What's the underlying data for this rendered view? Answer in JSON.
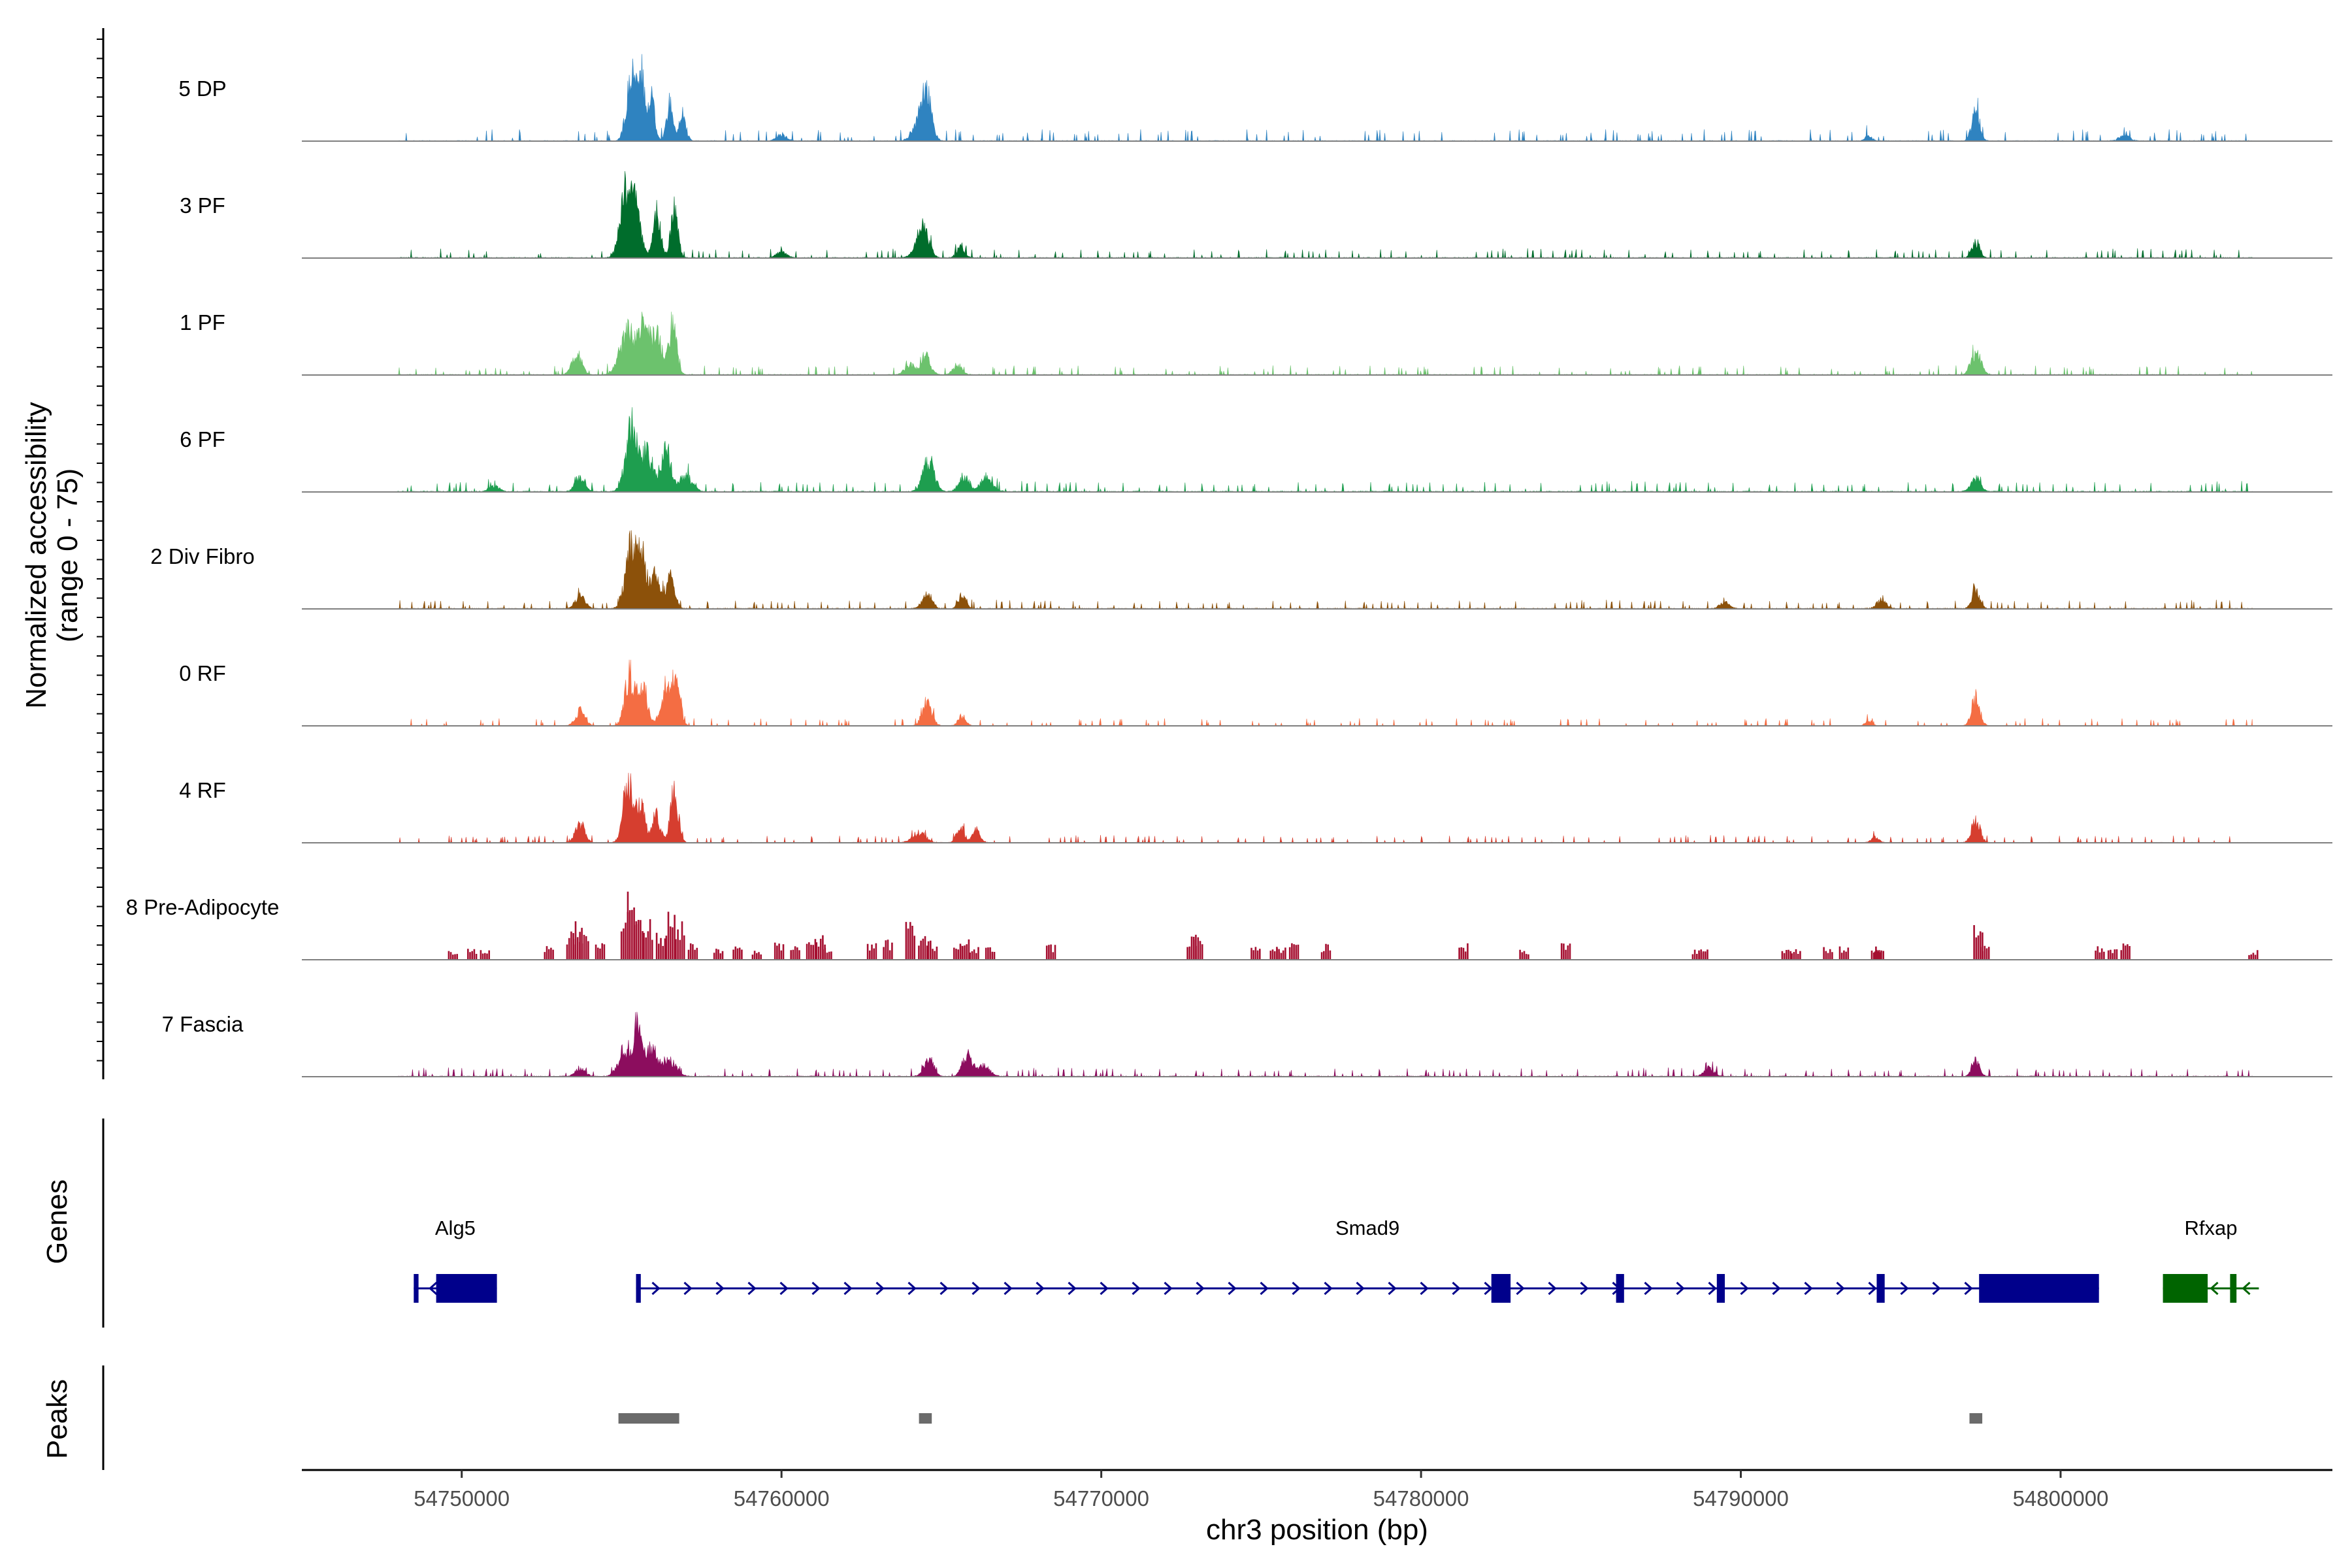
{
  "chart_data": {
    "type": "area",
    "description_note": "Genome browser coverage plot: normalized chromatin accessibility per cell cluster, gene annotation and peak tracks",
    "y_axis_title": "Normalized accessibility",
    "y_axis_range_label": "(range 0 - 75)",
    "ylim": [
      0,
      75
    ],
    "xlabel": "chr3 position (bp)",
    "xlim": [
      54745000,
      54808500
    ],
    "x_ticks": [
      54750000,
      54760000,
      54770000,
      54780000,
      54790000,
      54800000
    ],
    "x_tick_labels": [
      "54750000",
      "54760000",
      "54770000",
      "54780000",
      "54790000",
      "54800000"
    ],
    "data_range": [
      54748000,
      54806000
    ],
    "tracks": [
      {
        "name": "5 DP",
        "color": "#2f83c0",
        "noise": 2.0,
        "bg": 0.5,
        "peaks": [
          [
            54755300,
            55,
            150
          ],
          [
            54755600,
            70,
            120
          ],
          [
            54755950,
            40,
            100
          ],
          [
            54756500,
            35,
            100
          ],
          [
            54756900,
            20,
            120
          ],
          [
            54764300,
            18,
            200
          ],
          [
            54764550,
            40,
            150
          ],
          [
            54797350,
            30,
            120
          ],
          [
            54760000,
            6,
            150
          ],
          [
            54794000,
            5,
            100
          ],
          [
            54802000,
            6,
            150
          ]
        ]
      },
      {
        "name": "3 PF",
        "color": "#006d2c",
        "noise": 1.6,
        "bg": 0.6,
        "peaks": [
          [
            54755100,
            60,
            160
          ],
          [
            54755450,
            48,
            150
          ],
          [
            54756100,
            42,
            120
          ],
          [
            54756650,
            45,
            110
          ],
          [
            54764300,
            15,
            180
          ],
          [
            54764500,
            18,
            150
          ],
          [
            54765600,
            10,
            120
          ],
          [
            54797350,
            15,
            120
          ],
          [
            54760000,
            6,
            150
          ],
          [
            54808000,
            4,
            100
          ]
        ]
      },
      {
        "name": "1 PF",
        "color": "#6cc26d",
        "noise": 1.6,
        "bg": 0.6,
        "peaks": [
          [
            54753600,
            20,
            150
          ],
          [
            54755200,
            40,
            250
          ],
          [
            54755700,
            45,
            150
          ],
          [
            54756100,
            40,
            150
          ],
          [
            54756600,
            50,
            120
          ],
          [
            54764500,
            18,
            150
          ],
          [
            54764000,
            10,
            150
          ],
          [
            54765500,
            8,
            150
          ],
          [
            54797350,
            22,
            150
          ]
        ]
      },
      {
        "name": "6 PF",
        "color": "#1e9e4f",
        "noise": 1.8,
        "bg": 0.7,
        "peaks": [
          [
            54753700,
            15,
            150
          ],
          [
            54755300,
            60,
            180
          ],
          [
            54755800,
            35,
            200
          ],
          [
            54756400,
            38,
            150
          ],
          [
            54757000,
            15,
            200
          ],
          [
            54764600,
            30,
            180
          ],
          [
            54765700,
            15,
            150
          ],
          [
            54766400,
            12,
            200
          ],
          [
            54797350,
            12,
            150
          ],
          [
            54751000,
            6,
            150
          ]
        ]
      },
      {
        "name": "2 Div Fibro",
        "color": "#8c510a",
        "noise": 1.5,
        "bg": 0.6,
        "peaks": [
          [
            54753700,
            12,
            150
          ],
          [
            54755300,
            58,
            180
          ],
          [
            54755650,
            45,
            150
          ],
          [
            54756050,
            30,
            120
          ],
          [
            54756500,
            28,
            150
          ],
          [
            54764550,
            15,
            150
          ],
          [
            54765650,
            12,
            120
          ],
          [
            54797350,
            18,
            120
          ],
          [
            54794400,
            8,
            150
          ],
          [
            54789500,
            6,
            150
          ]
        ]
      },
      {
        "name": "0 RF",
        "color": "#f46d43",
        "noise": 1.3,
        "bg": 0.3,
        "peaks": [
          [
            54753700,
            14,
            150
          ],
          [
            54755250,
            48,
            150
          ],
          [
            54755650,
            40,
            150
          ],
          [
            54756350,
            35,
            140
          ],
          [
            54756700,
            55,
            120
          ],
          [
            54764550,
            22,
            150
          ],
          [
            54765650,
            10,
            120
          ],
          [
            54797350,
            25,
            130
          ],
          [
            54794000,
            5,
            100
          ]
        ]
      },
      {
        "name": "4 RF",
        "color": "#d63e2f",
        "noise": 1.3,
        "bg": 0.4,
        "peaks": [
          [
            54753700,
            18,
            150
          ],
          [
            54755200,
            58,
            150
          ],
          [
            54755600,
            35,
            150
          ],
          [
            54756100,
            25,
            120
          ],
          [
            54756650,
            50,
            120
          ],
          [
            54764300,
            10,
            200
          ],
          [
            54765600,
            15,
            120
          ],
          [
            54766100,
            12,
            120
          ],
          [
            54797350,
            22,
            130
          ],
          [
            54794200,
            5,
            120
          ]
        ]
      },
      {
        "name": "8 Pre-Adipocyte",
        "color": "#a50f30",
        "noise": 0.0,
        "bg": 0.0,
        "spiky": true,
        "spikes": [
          [
            54749700,
            7
          ],
          [
            54750300,
            8
          ],
          [
            54750700,
            7
          ],
          [
            54752700,
            10
          ],
          [
            54753400,
            22
          ],
          [
            54753600,
            28
          ],
          [
            54753800,
            22
          ],
          [
            54754300,
            12
          ],
          [
            54755100,
            35
          ],
          [
            54755300,
            50
          ],
          [
            54755500,
            45
          ],
          [
            54755800,
            30
          ],
          [
            54756200,
            20
          ],
          [
            54756500,
            35
          ],
          [
            54756800,
            30
          ],
          [
            54757200,
            12
          ],
          [
            54758000,
            8
          ],
          [
            54758600,
            10
          ],
          [
            54759200,
            7
          ],
          [
            54759900,
            14
          ],
          [
            54760400,
            12
          ],
          [
            54760900,
            15
          ],
          [
            54761200,
            18
          ],
          [
            54761400,
            10
          ],
          [
            54762800,
            12
          ],
          [
            54763300,
            15
          ],
          [
            54764000,
            30
          ],
          [
            54764400,
            18
          ],
          [
            54764700,
            14
          ],
          [
            54765500,
            12
          ],
          [
            54765700,
            15
          ],
          [
            54766000,
            10
          ],
          [
            54766500,
            12
          ],
          [
            54768400,
            12
          ],
          [
            54772800,
            20
          ],
          [
            54773000,
            18
          ],
          [
            54774800,
            10
          ],
          [
            54775400,
            12
          ],
          [
            54775600,
            10
          ],
          [
            54776000,
            12
          ],
          [
            54777000,
            12
          ],
          [
            54781300,
            12
          ],
          [
            54783200,
            8
          ],
          [
            54784500,
            12
          ],
          [
            54788600,
            8
          ],
          [
            54788800,
            8
          ],
          [
            54791400,
            8
          ],
          [
            54791700,
            8
          ],
          [
            54792700,
            10
          ],
          [
            54793200,
            10
          ],
          [
            54794200,
            10
          ],
          [
            54794300,
            10
          ],
          [
            54797400,
            25
          ],
          [
            54797600,
            12
          ],
          [
            54801200,
            10
          ],
          [
            54801600,
            10
          ],
          [
            54802000,
            12
          ],
          [
            54806000,
            7
          ]
        ]
      },
      {
        "name": "7 Fascia",
        "color": "#8c0d5e",
        "noise": 1.5,
        "bg": 0.6,
        "peaks": [
          [
            54755100,
            25,
            200
          ],
          [
            54755500,
            45,
            120
          ],
          [
            54755900,
            25,
            200
          ],
          [
            54756500,
            15,
            200
          ],
          [
            54764600,
            18,
            150
          ],
          [
            54765800,
            20,
            150
          ],
          [
            54766300,
            10,
            200
          ],
          [
            54797350,
            15,
            120
          ],
          [
            54789000,
            8,
            150
          ],
          [
            54753700,
            8,
            150
          ]
        ]
      }
    ],
    "genes": [
      {
        "name": "Alg5",
        "start": 54748500,
        "end": 54751100,
        "strand": "-",
        "color": "#00008b",
        "exons": [
          [
            54749200,
            54751100
          ],
          [
            54748500,
            54748650
          ]
        ]
      },
      {
        "name": "Smad9",
        "start": 54755450,
        "end": 54801200,
        "strand": "+",
        "color": "#00008b",
        "exons": [
          [
            54755450,
            54755600
          ],
          [
            54782200,
            54782800
          ],
          [
            54786100,
            54786350
          ],
          [
            54789250,
            54789500
          ],
          [
            54794250,
            54794500
          ],
          [
            54797450,
            54801200
          ]
        ]
      },
      {
        "name": "Rfxap",
        "start": 54803200,
        "end": 54806200,
        "strand": "-",
        "color": "#006400",
        "exons": [
          [
            54803200,
            54804600
          ],
          [
            54805300,
            54805500
          ]
        ]
      }
    ],
    "peaks_track": {
      "color": "#6b6b6b",
      "regions": [
        [
          54754900,
          54756800
        ],
        [
          54764300,
          54764700
        ],
        [
          54797150,
          54797550
        ]
      ]
    }
  },
  "labels": {
    "genes_title": "Genes",
    "peaks_title": "Peaks"
  }
}
